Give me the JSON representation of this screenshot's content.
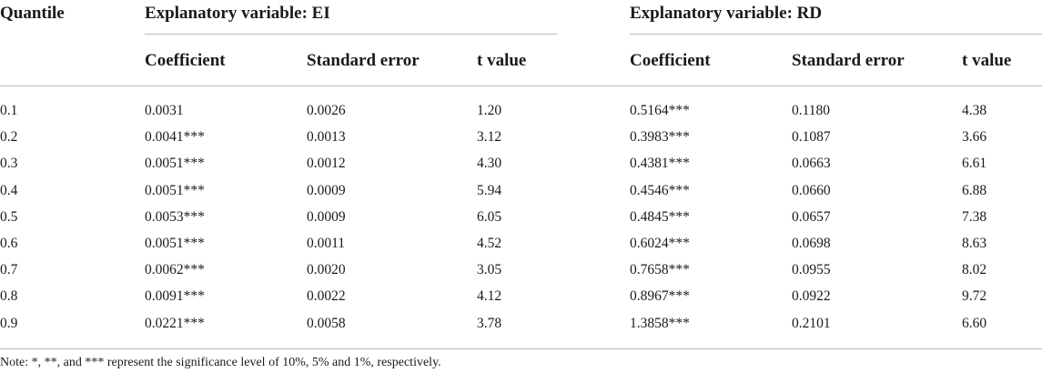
{
  "table": {
    "quantile_header": "Quantile",
    "groups": [
      {
        "label": "Explanatory variable: EI"
      },
      {
        "label": "Explanatory variable: RD"
      }
    ],
    "columns": [
      "Coefficient",
      "Standard error",
      "t value",
      "Coefficient",
      "Standard error",
      "t value"
    ],
    "rows": [
      [
        "0.1",
        "0.0031",
        "0.0026",
        "1.20",
        "0.5164***",
        "0.1180",
        "4.38"
      ],
      [
        "0.2",
        "0.0041***",
        "0.0013",
        "3.12",
        "0.3983***",
        "0.1087",
        "3.66"
      ],
      [
        "0.3",
        "0.0051***",
        "0.0012",
        "4.30",
        "0.4381***",
        "0.0663",
        "6.61"
      ],
      [
        "0.4",
        "0.0051***",
        "0.0009",
        "5.94",
        "0.4546***",
        "0.0660",
        "6.88"
      ],
      [
        "0.5",
        "0.0053***",
        "0.0009",
        "6.05",
        "0.4845***",
        "0.0657",
        "7.38"
      ],
      [
        "0.6",
        "0.0051***",
        "0.0011",
        "4.52",
        "0.6024***",
        "0.0698",
        "8.63"
      ],
      [
        "0.7",
        "0.0062***",
        "0.0020",
        "3.05",
        "0.7658***",
        "0.0955",
        "8.02"
      ],
      [
        "0.8",
        "0.0091***",
        "0.0022",
        "4.12",
        "0.8967***",
        "0.0922",
        "9.72"
      ],
      [
        "0.9",
        "0.0221***",
        "0.0058",
        "3.78",
        "1.3858***",
        "0.2101",
        "6.60"
      ]
    ],
    "note": "Note: *, **, and *** represent the significance level of 10%, 5% and 1%, respectively."
  }
}
